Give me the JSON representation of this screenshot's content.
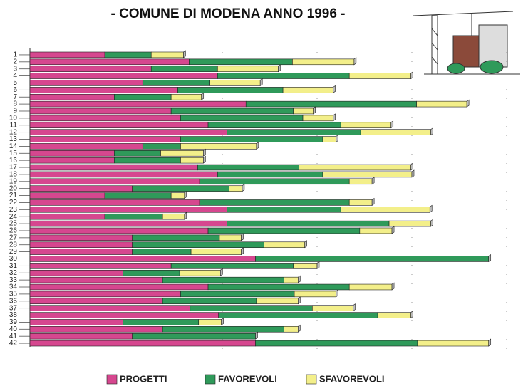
{
  "chart_data": {
    "type": "stacked-bar-horizontal",
    "title": "- COMUNE DI MODENA ANNO 1996 -",
    "categories": [
      "1",
      "2",
      "3",
      "4",
      "5",
      "6",
      "7",
      "8",
      "9",
      "10",
      "11",
      "12",
      "13",
      "14",
      "15",
      "16",
      "17",
      "18",
      "19",
      "20",
      "21",
      "22",
      "23",
      "24",
      "25",
      "26",
      "27",
      "28",
      "29",
      "30",
      "31",
      "32",
      "33",
      "34",
      "35",
      "36",
      "37",
      "38",
      "39",
      "40",
      "41",
      "42"
    ],
    "series": [
      {
        "name": "PROGETTI",
        "color": "#d6478f",
        "values": [
          7.9,
          16.8,
          12.8,
          19.8,
          11.9,
          15.6,
          8.9,
          22.8,
          14.9,
          15.9,
          18.8,
          20.8,
          15.9,
          11.9,
          8.9,
          8.9,
          17.7,
          19.8,
          17.9,
          10.8,
          7.9,
          17.9,
          20.8,
          7.9,
          20.8,
          18.8,
          10.8,
          10.8,
          10.8,
          23.8,
          14.9,
          9.8,
          14.0,
          18.8,
          15.9,
          14.0,
          16.9,
          19.9,
          9.8,
          14.0,
          10.8,
          23.8
        ]
      },
      {
        "name": "FAVOREVOLI",
        "color": "#2f9a5a",
        "values": [
          4.9,
          10.9,
          7.0,
          13.9,
          7.1,
          11.1,
          6.0,
          18.0,
          12.9,
          12.9,
          14.0,
          14.1,
          15.0,
          4.0,
          4.9,
          7.0,
          10.7,
          11.1,
          15.8,
          10.2,
          7.0,
          15.8,
          12.0,
          6.1,
          17.1,
          16.0,
          9.2,
          13.9,
          6.2,
          24.6,
          12.9,
          6.0,
          12.8,
          14.9,
          12.0,
          9.9,
          12.9,
          16.8,
          8.0,
          12.8,
          13.0,
          17.1
        ]
      },
      {
        "name": "SFAVOREVOLI",
        "color": "#f3ef8a",
        "values": [
          3.4,
          6.5,
          6.4,
          6.5,
          5.3,
          5.3,
          3.2,
          5.3,
          2.1,
          3.2,
          5.3,
          7.4,
          1.4,
          8.0,
          4.5,
          2.4,
          11.8,
          9.4,
          2.4,
          1.4,
          1.4,
          2.4,
          9.4,
          2.3,
          4.4,
          3.4,
          2.3,
          4.3,
          5.3,
          0,
          2.5,
          4.3,
          1.5,
          4.5,
          4.4,
          4.4,
          4.3,
          3.5,
          2.4,
          1.5,
          0,
          7.5
        ]
      }
    ]
  }
}
